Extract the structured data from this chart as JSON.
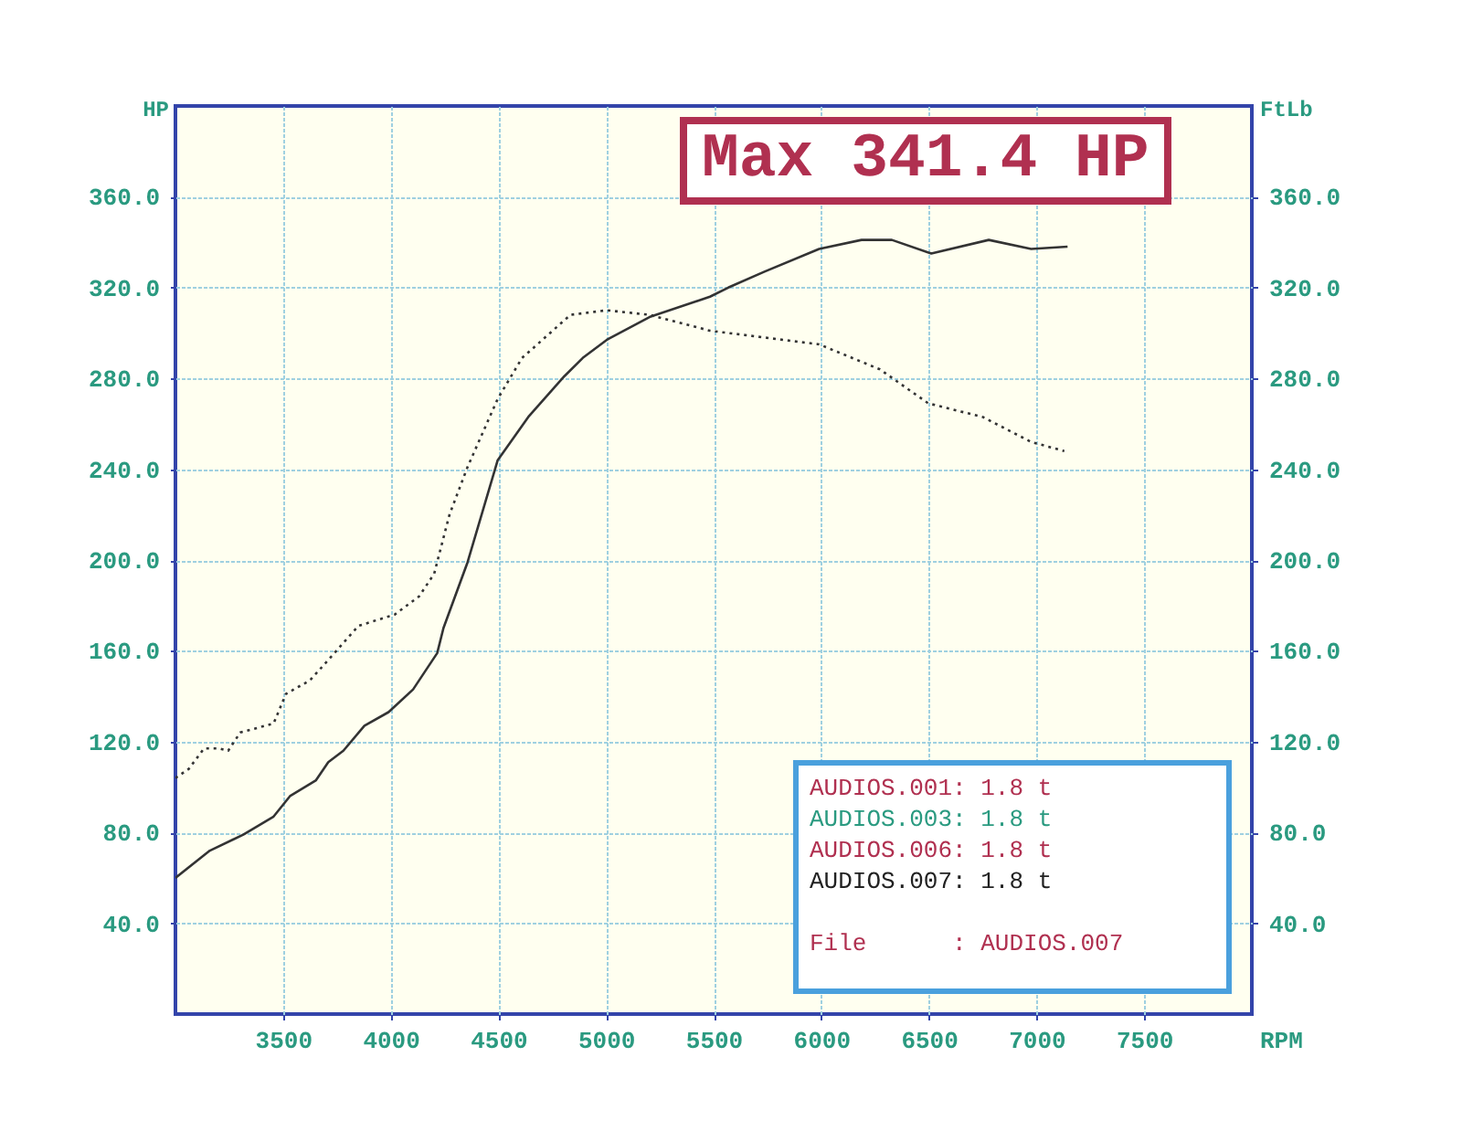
{
  "chart_data": {
    "type": "line",
    "xlabel": "RPM",
    "ylabel": "HP",
    "y2label": "FtLb",
    "xlim": [
      3000,
      8000
    ],
    "xticks": [
      3500,
      4000,
      4500,
      5000,
      5500,
      6000,
      6500,
      7000,
      7500
    ],
    "ylim": [
      0,
      400
    ],
    "yticks": [
      {
        "value": 40,
        "label": "40.0"
      },
      {
        "value": 80,
        "label": "80.0"
      },
      {
        "value": 120,
        "label": "120.0"
      },
      {
        "value": 160,
        "label": "160.0"
      },
      {
        "value": 200,
        "label": "200.0"
      },
      {
        "value": 240,
        "label": "240.0"
      },
      {
        "value": 280,
        "label": "280.0"
      },
      {
        "value": 320,
        "label": "320.0"
      },
      {
        "value": 360,
        "label": "360.0"
      }
    ],
    "y2lim": [
      0,
      400
    ],
    "y2ticks": [
      {
        "value": 40,
        "label": "40.0"
      },
      {
        "value": 80,
        "label": "80.0"
      },
      {
        "value": 120,
        "label": "120.0"
      },
      {
        "value": 160,
        "label": "160.0"
      },
      {
        "value": 200,
        "label": "200.0"
      },
      {
        "value": 240,
        "label": "240.0"
      },
      {
        "value": 280,
        "label": "280.0"
      },
      {
        "value": 320,
        "label": "320.0"
      },
      {
        "value": 360,
        "label": "360.0"
      }
    ],
    "grid": true,
    "marker": "none",
    "series": [
      {
        "color": "#333333",
        "line_style": "solid",
        "x": [
          3000,
          3160,
          3315,
          3456,
          3532,
          3653,
          3710,
          3780,
          3878,
          3990,
          4104,
          4216,
          4245,
          4357,
          4497,
          4639,
          4807,
          4892,
          5004,
          5202,
          5483,
          5568,
          5736,
          5990,
          6187,
          6328,
          6511,
          6778,
          6975,
          7144
        ],
        "values": [
          60,
          72,
          79,
          87,
          96,
          103,
          111,
          116,
          127,
          133,
          143,
          159,
          170,
          199,
          244,
          263,
          281,
          289,
          297,
          307,
          316,
          320,
          327,
          337,
          341,
          341,
          335,
          341,
          337,
          338
        ]
      },
      {
        "color": "#333333",
        "line_style": "dotted",
        "axis": "y2",
        "x": [
          3000,
          3062,
          3133,
          3203,
          3245,
          3301,
          3456,
          3513,
          3625,
          3710,
          3850,
          4019,
          4132,
          4202,
          4273,
          4357,
          4497,
          4610,
          4835,
          5004,
          5202,
          5483,
          5568,
          5990,
          6272,
          6497,
          6750,
          6975,
          7129
        ],
        "values": [
          104,
          108,
          117,
          117,
          116,
          124,
          128,
          141,
          147,
          156,
          171,
          176,
          184,
          194,
          220,
          241,
          271,
          289,
          308,
          310,
          308,
          301,
          300,
          295,
          284,
          269,
          263,
          252,
          248
        ]
      }
    ],
    "annotations": [
      "Max 341.4 HP",
      "AUDIOS.001: 1.8 t",
      "AUDIOS.003: 1.8 t",
      "AUDIOS.006: 1.8 t",
      "AUDIOS.007: 1.8 t",
      "File      : AUDIOS.007"
    ]
  }
}
